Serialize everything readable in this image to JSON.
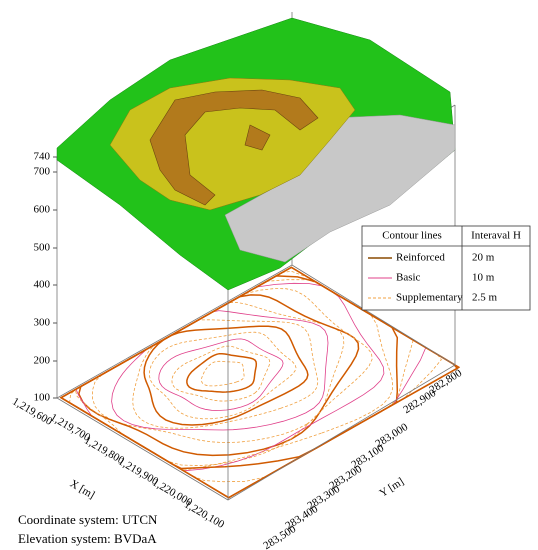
{
  "z_axis": {
    "ticks": [
      "740",
      "700",
      "600",
      "500",
      "400",
      "300",
      "200",
      "100"
    ]
  },
  "x_axis": {
    "label": "X [m]",
    "ticks": [
      "1,219,600",
      "1,219,700",
      "1,219,800",
      "1,219,900",
      "1,220,000",
      "1,220,100"
    ]
  },
  "y_axis": {
    "label": "Y [m]",
    "ticks": [
      "283,500",
      "283,400",
      "283,300",
      "283,200",
      "283,100",
      "283,000",
      "282,900",
      "282,800"
    ]
  },
  "legend": {
    "header": [
      "Contour lines",
      "Interaval H"
    ],
    "rows": [
      [
        "Reinforced",
        "20 m"
      ],
      [
        "Basic",
        "10 m"
      ],
      [
        "Supplementary",
        "2.5 m"
      ]
    ]
  },
  "notes": [
    "Coordinate system: UTCN",
    "Elevation system: BVDaA"
  ]
}
